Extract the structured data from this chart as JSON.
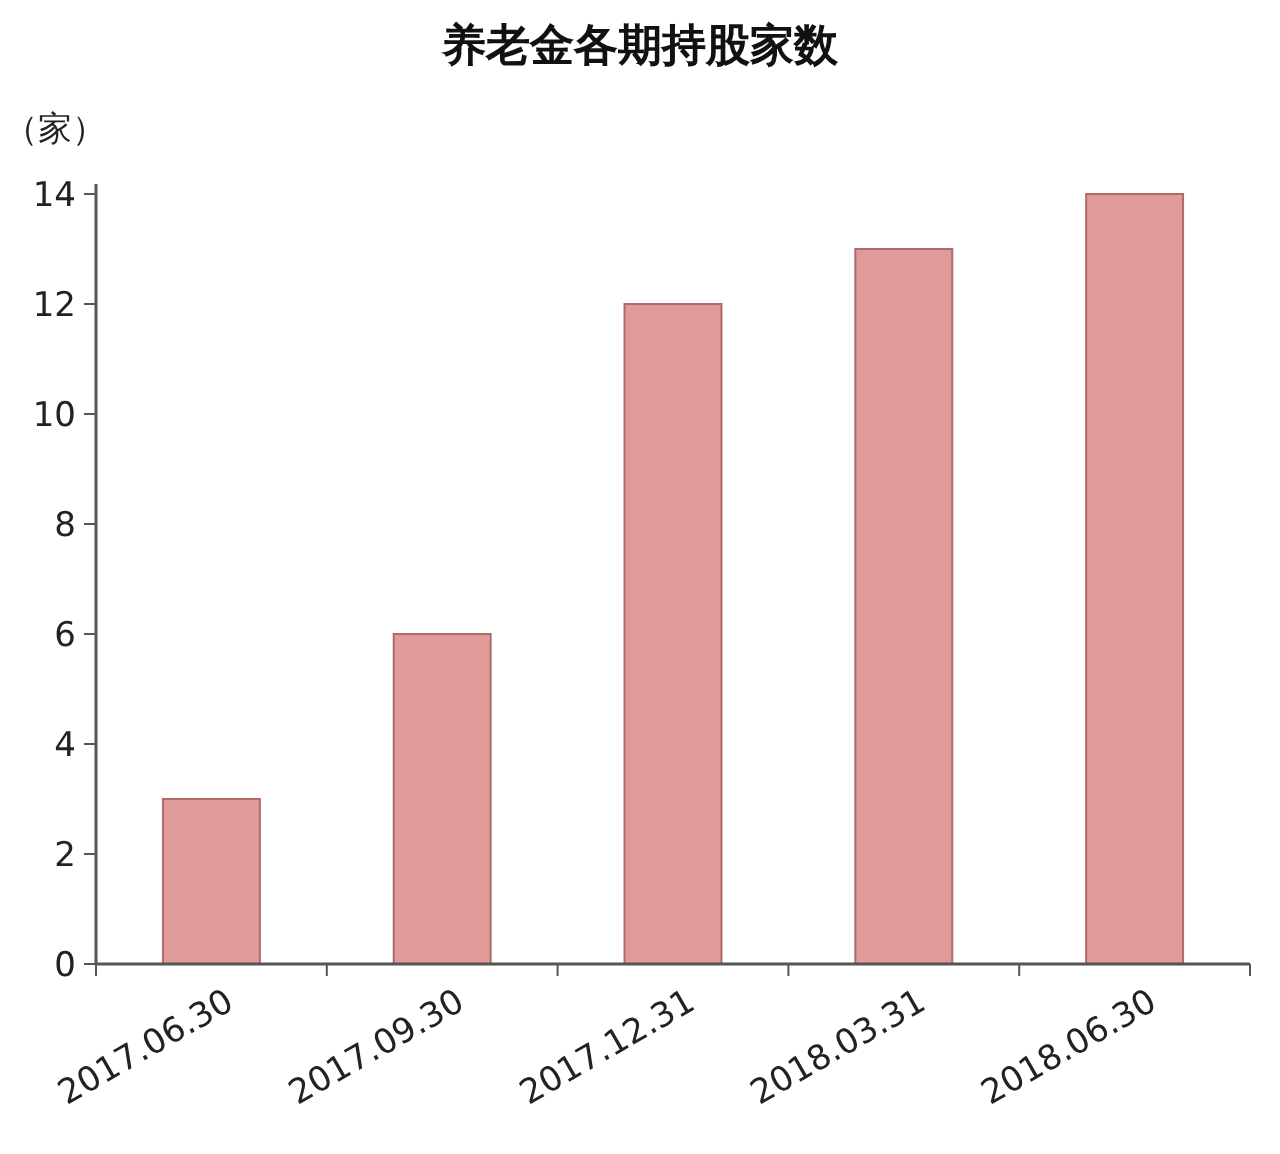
{
  "chart_data": {
    "type": "bar",
    "title": "养老金各期持股家数",
    "ylabel": "（家）",
    "categories": [
      "2017.06.30",
      "2017.09.30",
      "2017.12.31",
      "2018.03.31",
      "2018.06.30"
    ],
    "values": [
      3,
      6,
      12,
      13,
      14
    ],
    "color": "#e09a9a",
    "ylim": [
      0,
      14
    ],
    "yticks": [
      0,
      2,
      4,
      6,
      8,
      10,
      12,
      14
    ]
  }
}
